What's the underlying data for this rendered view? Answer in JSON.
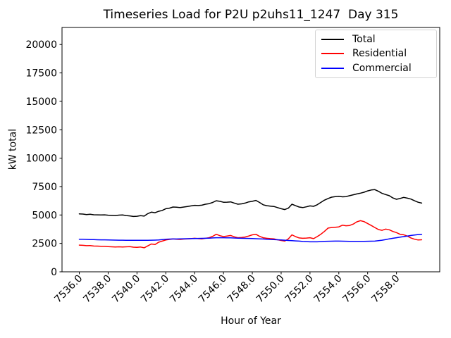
{
  "chart_data": {
    "type": "line",
    "title": "Timeseries Load for P2U p2uhs11_1247  Day 315",
    "xlabel": "Hour of Year",
    "ylabel": "kW total",
    "xlim": [
      7534.8,
      7561.0
    ],
    "ylim": [
      0,
      21500
    ],
    "grid": false,
    "legend_position": "upper right",
    "xticks": [
      7536,
      7538,
      7540,
      7542,
      7544,
      7546,
      7548,
      7550,
      7552,
      7554,
      7556,
      7558
    ],
    "xtick_labels": [
      "7536.0",
      "7538.0",
      "7540.0",
      "7542.0",
      "7544.0",
      "7546.0",
      "7548.0",
      "7550.0",
      "7552.0",
      "7554.0",
      "7556.0",
      "7558.0"
    ],
    "yticks": [
      0,
      2500,
      5000,
      7500,
      10000,
      12500,
      15000,
      17500,
      20000
    ],
    "ytick_labels": [
      "0",
      "2500",
      "5000",
      "7500",
      "10000",
      "12500",
      "15000",
      "17500",
      "20000"
    ],
    "x": [
      7536.0,
      7536.25,
      7536.5,
      7536.75,
      7537.0,
      7537.25,
      7537.5,
      7537.75,
      7538.0,
      7538.25,
      7538.5,
      7538.75,
      7539.0,
      7539.25,
      7539.5,
      7539.75,
      7540.0,
      7540.25,
      7540.5,
      7540.75,
      7541.0,
      7541.25,
      7541.5,
      7541.75,
      7542.0,
      7542.25,
      7542.5,
      7542.75,
      7543.0,
      7543.25,
      7543.5,
      7543.75,
      7544.0,
      7544.25,
      7544.5,
      7544.75,
      7545.0,
      7545.25,
      7545.5,
      7545.75,
      7546.0,
      7546.25,
      7546.5,
      7546.75,
      7547.0,
      7547.25,
      7547.5,
      7547.75,
      7548.0,
      7548.25,
      7548.5,
      7548.75,
      7549.0,
      7549.25,
      7549.5,
      7549.75,
      7550.0,
      7550.25,
      7550.5,
      7550.75,
      7551.0,
      7551.25,
      7551.5,
      7551.75,
      7552.0,
      7552.25,
      7552.5,
      7552.75,
      7553.0,
      7553.25,
      7553.5,
      7553.75,
      7554.0,
      7554.25,
      7554.5,
      7554.75,
      7555.0,
      7555.25,
      7555.5,
      7555.75,
      7556.0,
      7556.25,
      7556.5,
      7556.75,
      7557.0,
      7557.25,
      7557.5,
      7557.75,
      7558.0,
      7558.25,
      7558.5,
      7558.75,
      7559.0,
      7559.25,
      7559.5,
      7559.75
    ],
    "series": [
      {
        "name": "Total",
        "color": "#000000",
        "values": [
          5100,
          5080,
          5040,
          5060,
          5020,
          5010,
          5000,
          5010,
          4980,
          4960,
          4950,
          4990,
          5000,
          4950,
          4920,
          4870,
          4890,
          4940,
          4900,
          5120,
          5250,
          5200,
          5320,
          5400,
          5550,
          5600,
          5700,
          5680,
          5650,
          5700,
          5750,
          5800,
          5850,
          5830,
          5860,
          5950,
          6000,
          6100,
          6250,
          6200,
          6120,
          6130,
          6150,
          6050,
          5950,
          5980,
          6050,
          6150,
          6200,
          6280,
          6100,
          5900,
          5820,
          5780,
          5750,
          5650,
          5550,
          5480,
          5600,
          5950,
          5820,
          5700,
          5650,
          5720,
          5800,
          5760,
          5900,
          6100,
          6300,
          6450,
          6570,
          6620,
          6650,
          6600,
          6620,
          6700,
          6780,
          6850,
          6920,
          7000,
          7120,
          7200,
          7230,
          7080,
          6900,
          6800,
          6700,
          6500,
          6380,
          6450,
          6550,
          6480,
          6400,
          6250,
          6120,
          6050
        ]
      },
      {
        "name": "Residential",
        "color": "#ff0000",
        "values": [
          2350,
          2330,
          2300,
          2310,
          2270,
          2260,
          2250,
          2240,
          2220,
          2200,
          2190,
          2200,
          2180,
          2200,
          2220,
          2170,
          2150,
          2180,
          2110,
          2280,
          2450,
          2400,
          2600,
          2700,
          2800,
          2850,
          2900,
          2870,
          2850,
          2880,
          2900,
          2920,
          2950,
          2920,
          2900,
          2950,
          3000,
          3120,
          3300,
          3180,
          3100,
          3150,
          3200,
          3080,
          3000,
          3020,
          3060,
          3150,
          3250,
          3300,
          3120,
          3000,
          2950,
          2920,
          2900,
          2820,
          2760,
          2700,
          2900,
          3250,
          3100,
          2980,
          2950,
          2970,
          3000,
          2920,
          3100,
          3300,
          3550,
          3850,
          3900,
          3920,
          3950,
          4100,
          4050,
          4080,
          4200,
          4400,
          4500,
          4420,
          4250,
          4080,
          3900,
          3720,
          3650,
          3760,
          3700,
          3550,
          3450,
          3300,
          3260,
          3150,
          2980,
          2870,
          2800,
          2820
        ]
      },
      {
        "name": "Commercial",
        "color": "#0000ff",
        "values": [
          2870,
          2860,
          2850,
          2840,
          2830,
          2820,
          2815,
          2810,
          2800,
          2795,
          2790,
          2785,
          2780,
          2778,
          2775,
          2772,
          2770,
          2770,
          2772,
          2775,
          2780,
          2790,
          2800,
          2835,
          2870,
          2880,
          2885,
          2890,
          2900,
          2905,
          2910,
          2920,
          2930,
          2935,
          2940,
          2950,
          2960,
          2980,
          3000,
          3000,
          3000,
          2995,
          2990,
          2975,
          2960,
          2950,
          2945,
          2935,
          2930,
          2915,
          2900,
          2885,
          2870,
          2850,
          2835,
          2820,
          2800,
          2780,
          2760,
          2740,
          2720,
          2700,
          2670,
          2655,
          2640,
          2640,
          2640,
          2660,
          2680,
          2690,
          2695,
          2700,
          2700,
          2695,
          2690,
          2685,
          2680,
          2680,
          2680,
          2685,
          2690,
          2695,
          2700,
          2740,
          2780,
          2840,
          2900,
          2950,
          3000,
          3050,
          3100,
          3150,
          3200,
          3240,
          3280,
          3300
        ]
      }
    ]
  }
}
